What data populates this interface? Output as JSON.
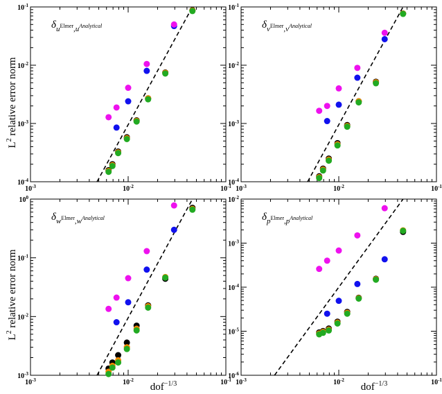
{
  "xlabel": "dof",
  "xlabel_exp": "−1/3",
  "ylabel": "L",
  "ylabel_exp": "2",
  "ylabel_rest": " relative error norm",
  "colors": {
    "black": "#000000",
    "green": "#22aa22",
    "orange": "#ee8800",
    "blue": "#1111ee",
    "magenta": "#ee11ee"
  },
  "chart_data": [
    {
      "type": "scatter",
      "annotation": {
        "base": "δ",
        "sub1": "u",
        "sup1": "Elmer",
        "sep": ",",
        "sub2": "u",
        "sup2": "Analytical"
      },
      "xlim": [
        0.001,
        0.1
      ],
      "ylim": [
        0.0001,
        0.1
      ],
      "log_x": true,
      "log_y": true,
      "xticks": [
        "10",
        "10",
        "10"
      ],
      "xtick_exps": [
        "-3",
        "-2",
        "-1"
      ],
      "yticks": [
        "10",
        "10",
        "10",
        "10"
      ],
      "ytick_exps": [
        "-4",
        "-3",
        "-2",
        "-1"
      ],
      "series": [
        {
          "color": "magenta",
          "x": [
            0.0063,
            0.0076,
            0.01,
            0.0155,
            0.0295
          ],
          "y": [
            0.00128,
            0.00188,
            0.0041,
            0.0105,
            0.05
          ]
        },
        {
          "color": "blue",
          "x": [
            0.0076,
            0.01,
            0.0155,
            0.0295
          ],
          "y": [
            0.00085,
            0.0024,
            0.008,
            0.047
          ]
        },
        {
          "color": "black",
          "x": [
            0.0063,
            0.0069,
            0.0079,
            0.0097,
            0.0122,
            0.016,
            0.024,
            0.0455
          ],
          "y": [
            0.000158,
            0.0002,
            0.00033,
            0.00058,
            0.00113,
            0.0027,
            0.0075,
            0.088
          ]
        },
        {
          "color": "orange",
          "x": [
            0.0063,
            0.0069,
            0.0079,
            0.0097,
            0.0122,
            0.016,
            0.024,
            0.0455
          ],
          "y": [
            0.000153,
            0.000193,
            0.00032,
            0.00056,
            0.00111,
            0.0027,
            0.0074,
            0.087
          ]
        },
        {
          "color": "green",
          "x": [
            0.0063,
            0.0069,
            0.0079,
            0.0097,
            0.0122,
            0.016,
            0.024,
            0.0455
          ],
          "y": [
            0.000148,
            0.000186,
            0.00031,
            0.00054,
            0.00108,
            0.0026,
            0.0072,
            0.085
          ]
        }
      ],
      "reference_line": {
        "x": [
          0.0048,
          0.0455
        ],
        "y": [
          0.0001,
          0.1
        ]
      }
    },
    {
      "type": "scatter",
      "annotation": {
        "base": "δ",
        "sub1": "v",
        "sup1": "Elmer",
        "sep": ",",
        "sub2": "v",
        "sup2": "Analytical"
      },
      "xlim": [
        0.001,
        0.1
      ],
      "ylim": [
        0.0001,
        0.1
      ],
      "log_x": true,
      "log_y": true,
      "xticks": [
        "10",
        "10",
        "10"
      ],
      "xtick_exps": [
        "-3",
        "-2",
        "-1"
      ],
      "yticks": [
        "10",
        "10",
        "10",
        "10"
      ],
      "ytick_exps": [
        "-4",
        "-3",
        "-2",
        "-1"
      ],
      "series": [
        {
          "color": "magenta",
          "x": [
            0.0063,
            0.0076,
            0.01,
            0.0155,
            0.0295
          ],
          "y": [
            0.00165,
            0.002,
            0.004,
            0.009,
            0.036
          ]
        },
        {
          "color": "blue",
          "x": [
            0.0076,
            0.01,
            0.0155,
            0.0295
          ],
          "y": [
            0.0011,
            0.0021,
            0.0061,
            0.028
          ]
        },
        {
          "color": "black",
          "x": [
            0.0063,
            0.0069,
            0.0079,
            0.0097,
            0.0122,
            0.016,
            0.024,
            0.0455
          ],
          "y": [
            0.000124,
            0.000168,
            0.00025,
            0.00046,
            0.00094,
            0.0024,
            0.0052,
            0.077
          ]
        },
        {
          "color": "orange",
          "x": [
            0.0063,
            0.0069,
            0.0079,
            0.0097,
            0.0122,
            0.016,
            0.024,
            0.0455
          ],
          "y": [
            0.00012,
            0.000162,
            0.00024,
            0.00044,
            0.00091,
            0.0024,
            0.0051,
            0.077
          ]
        },
        {
          "color": "green",
          "x": [
            0.0063,
            0.0069,
            0.0079,
            0.0097,
            0.0122,
            0.016,
            0.024,
            0.0455
          ],
          "y": [
            0.000116,
            0.000156,
            0.00023,
            0.00042,
            0.00088,
            0.0023,
            0.0049,
            0.076
          ]
        }
      ],
      "reference_line": {
        "x": [
          0.0048,
          0.0455
        ],
        "y": [
          0.0001,
          0.1
        ]
      }
    },
    {
      "type": "scatter",
      "annotation": {
        "base": "δ",
        "sub1": "w",
        "sup1": "Elmer",
        "sep": ",",
        "sub2": "w",
        "sup2": "Analytical"
      },
      "xlim": [
        0.001,
        0.1
      ],
      "ylim": [
        0.001,
        1
      ],
      "log_x": true,
      "log_y": true,
      "xticks": [
        "10",
        "10",
        "10"
      ],
      "xtick_exps": [
        "-3",
        "-2",
        "-1"
      ],
      "yticks": [
        "10",
        "10",
        "10",
        "10"
      ],
      "ytick_exps": [
        "-3",
        "-2",
        "-1",
        "0"
      ],
      "series": [
        {
          "color": "magenta",
          "x": [
            0.0063,
            0.0076,
            0.01,
            0.0155,
            0.0295
          ],
          "y": [
            0.0135,
            0.021,
            0.045,
            0.13,
            0.78
          ]
        },
        {
          "color": "blue",
          "x": [
            0.0076,
            0.01,
            0.0155,
            0.0295
          ],
          "y": [
            0.008,
            0.0175,
            0.063,
            0.3
          ]
        },
        {
          "color": "black",
          "x": [
            0.0063,
            0.0069,
            0.0079,
            0.0097,
            0.0122,
            0.016,
            0.024,
            0.0455
          ],
          "y": [
            0.0013,
            0.00165,
            0.0022,
            0.0036,
            0.007,
            0.0155,
            0.044,
            0.71
          ]
        },
        {
          "color": "orange",
          "x": [
            0.0063,
            0.0069,
            0.0079,
            0.0097,
            0.0122,
            0.016,
            0.024,
            0.0455
          ],
          "y": [
            0.00115,
            0.00145,
            0.0018,
            0.003,
            0.0062,
            0.015,
            0.047,
            0.68
          ]
        },
        {
          "color": "green",
          "x": [
            0.0063,
            0.0069,
            0.0079,
            0.0097,
            0.0122,
            0.016,
            0.024,
            0.0455
          ],
          "y": [
            0.00105,
            0.00135,
            0.00165,
            0.0028,
            0.0058,
            0.0142,
            0.046,
            0.66
          ]
        }
      ],
      "reference_line": {
        "x": [
          0.0048,
          0.0455
        ],
        "y": [
          0.001,
          1
        ]
      }
    },
    {
      "type": "scatter",
      "annotation": {
        "base": "δ",
        "sub1": "p",
        "sup1": "Elmer",
        "sep": ",",
        "sub2": "p",
        "sup2": "Analytical"
      },
      "xlim": [
        0.001,
        0.1
      ],
      "ylim": [
        1e-06,
        0.01
      ],
      "log_x": true,
      "log_y": true,
      "xticks": [
        "10",
        "10",
        "10"
      ],
      "xtick_exps": [
        "-3",
        "-2",
        "-1"
      ],
      "yticks": [
        "10",
        "10",
        "10",
        "10",
        "10"
      ],
      "ytick_exps": [
        "-6",
        "-5",
        "-4",
        "-3",
        "-2"
      ],
      "series": [
        {
          "color": "magenta",
          "x": [
            0.0063,
            0.0076,
            0.01,
            0.0155,
            0.0295
          ],
          "y": [
            0.00026,
            0.0004,
            0.00068,
            0.0015,
            0.0062
          ]
        },
        {
          "color": "blue",
          "x": [
            0.0076,
            0.01,
            0.0155,
            0.0295
          ],
          "y": [
            2.5e-05,
            4.9e-05,
            0.000118,
            0.00043
          ]
        },
        {
          "color": "black",
          "x": [
            0.0063,
            0.0069,
            0.0079,
            0.0097,
            0.0122,
            0.016,
            0.024,
            0.0455
          ],
          "y": [
            9.4e-06,
            1.01e-05,
            1.15e-05,
            1.65e-05,
            2.75e-05,
            5.75e-05,
            0.000155,
            0.0018
          ]
        },
        {
          "color": "orange",
          "x": [
            0.0063,
            0.0069,
            0.0079,
            0.0097,
            0.0122,
            0.016,
            0.024,
            0.0455
          ],
          "y": [
            8.9e-06,
            9.7e-06,
            1.09e-05,
            1.57e-05,
            2.63e-05,
            5.65e-05,
            0.000152,
            0.00195
          ]
        },
        {
          "color": "green",
          "x": [
            0.0063,
            0.0069,
            0.0079,
            0.0097,
            0.0122,
            0.016,
            0.024,
            0.0455
          ],
          "y": [
            8.5e-06,
            9.2e-06,
            1.04e-05,
            1.5e-05,
            2.5e-05,
            5.5e-05,
            0.000148,
            0.0019
          ]
        }
      ],
      "reference_line": {
        "x": [
          0.0022,
          0.0455
        ],
        "y": [
          1e-06,
          0.01
        ]
      }
    }
  ]
}
